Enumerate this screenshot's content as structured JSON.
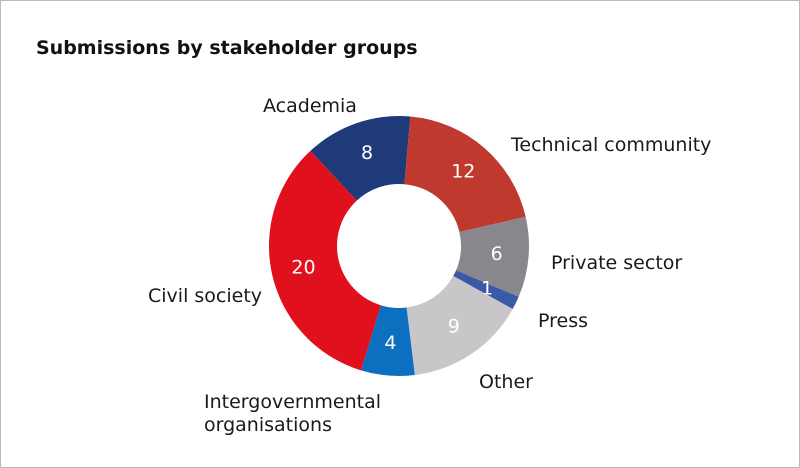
{
  "chart_data": {
    "type": "donut",
    "title": "Submissions by stakeholder groups",
    "categories": [
      "Academia",
      "Technical community",
      "Private sector",
      "Press",
      "Other",
      "Intergovernmental organisations",
      "Civil society"
    ],
    "values": [
      8,
      12,
      6,
      1,
      9,
      4,
      20
    ],
    "colors": [
      "#1f3a78",
      "#c0392f",
      "#87878c",
      "#3a5aa6",
      "#c9c6c9",
      "#0c6fbf",
      "#e1101d"
    ]
  }
}
